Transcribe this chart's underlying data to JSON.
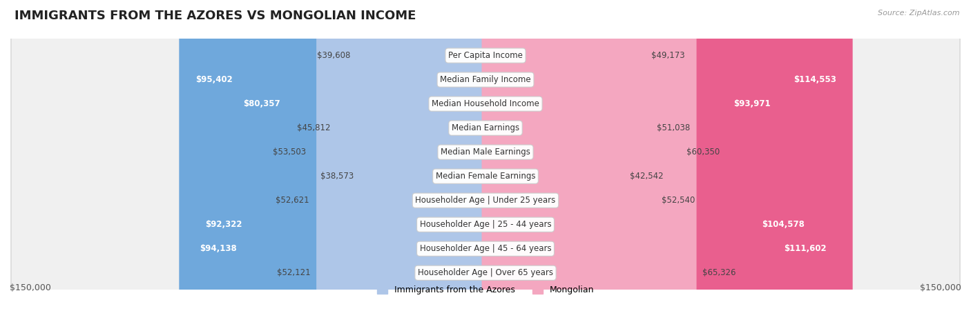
{
  "title": "IMMIGRANTS FROM THE AZORES VS MONGOLIAN INCOME",
  "source": "Source: ZipAtlas.com",
  "categories": [
    "Per Capita Income",
    "Median Family Income",
    "Median Household Income",
    "Median Earnings",
    "Median Male Earnings",
    "Median Female Earnings",
    "Householder Age | Under 25 years",
    "Householder Age | 25 - 44 years",
    "Householder Age | 45 - 64 years",
    "Householder Age | Over 65 years"
  ],
  "azores_values": [
    39608,
    95402,
    80357,
    45812,
    53503,
    38573,
    52621,
    92322,
    94138,
    52121
  ],
  "mongolian_values": [
    49173,
    114553,
    93971,
    51038,
    60350,
    42542,
    52540,
    104578,
    111602,
    65326
  ],
  "azores_color_light": "#aec6e8",
  "azores_color_strong": "#6fa8dc",
  "mongolian_color_light": "#f4a7c0",
  "mongolian_color_strong": "#e95f8e",
  "row_bg_color": "#f0f0f0",
  "row_border_color": "#dddddd",
  "max_value": 150000,
  "title_fontsize": 13,
  "label_fontsize": 8.5,
  "value_fontsize": 8.5,
  "axis_label_fontsize": 9,
  "legend_fontsize": 9,
  "strong_threshold": 75000
}
